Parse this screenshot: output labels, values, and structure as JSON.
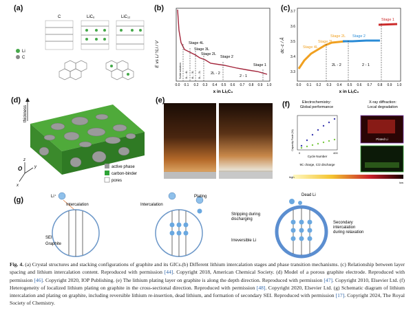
{
  "panels": {
    "a": {
      "label": "(a)",
      "structures": [
        "C",
        "LiC₆",
        "LiC₁₂"
      ],
      "legend": [
        "Li",
        "C"
      ]
    },
    "b": {
      "label": "(b)",
      "ylabel": "E vs Li⁺/Li / V",
      "xlabel": "x in LiₓC₆",
      "stages": [
        "Stage 4L",
        "Stage 3L",
        "Stage 2L",
        "Stage 2",
        "Stage 1"
      ],
      "phases": [
        "Solid solution",
        "1L - 4L",
        "4L - 3L",
        "3L - 2L",
        "2L - 2",
        "2 - 1"
      ],
      "xticks": [
        "0.0",
        "0.1",
        "0.2",
        "0.3",
        "0.4",
        "0.5",
        "0.6",
        "0.7",
        "0.8",
        "0.9",
        "1.0"
      ]
    },
    "c": {
      "label": "(c)",
      "ylabel": "dᴄ₋ᴄ / Å",
      "xlabel": "x in LiₓC₆",
      "stages": [
        "Stage 1",
        "Stage 2",
        "Stage 2L",
        "Stage 3L",
        "Stage 4L"
      ],
      "phases": [
        "2L - 2",
        "2 - 1"
      ],
      "yticks": [
        "3.3",
        "3.4",
        "3.5",
        "3.6",
        "3.7"
      ],
      "xticks": [
        "0.0",
        "0.1",
        "0.2",
        "0.3",
        "0.4",
        "0.5",
        "0.6",
        "0.7",
        "0.8",
        "0.9",
        "1.0"
      ]
    },
    "d": {
      "label": "(d)",
      "axis_thickness": "thickness",
      "axes": [
        "O",
        "x",
        "y",
        "z"
      ],
      "legend": [
        "active phase",
        "carbon-binder",
        "pores"
      ]
    },
    "e": {
      "label": "(e)"
    },
    "f": {
      "label": "(f)",
      "left_title": "Electrochemistry:\nGlobal performance",
      "right_title": "X-ray diffraction:\nLocal degradation",
      "ylabel": "Capacity Fade (%)",
      "xlabel": "Cycle Number",
      "xticks": [
        "0",
        "400"
      ],
      "note": "9C charge, C/2 discharge",
      "plated": "Plated Li",
      "colorbar": [
        "high",
        "low"
      ]
    },
    "g": {
      "label": "(g)",
      "li": "Li⁺",
      "intercalation": "Intercalation",
      "sei": "SEI",
      "graphite": "Graphite",
      "intercalation2": "Intercalation",
      "plating": "Plating",
      "dead_li": "Dead Li",
      "stripping": "Stripping during\ndischarging",
      "irreversible": "Irreversible Li",
      "secondary": "Secondary\nintercalation\nduring relaxation"
    }
  },
  "caption": {
    "fig": "Fig. 4.",
    "text_1": " (a) Crystal structures and stacking configurations of graphite and its GICs.(b) Different lithium intercalation stages and phase transition mechanisms. (c) Relationship between layer spacing and lithium intercalation content. Reproduced with permission ",
    "ref_1": "[44]",
    "text_2": ". Copyright 2018, American Chemical Society. (d) Model of a porous graphite electrode. Reproduced with permission ",
    "ref_2": "[46]",
    "text_3": ". Copyright 2020, IOP Publishing. (e) The lithium plating layer on graphite is along the depth direction. Reproduced with permission ",
    "ref_3": "[47]",
    "text_4": ". Copyright 2010, Elsevier Ltd. (f) Heterogeneity of localized lithium plating on graphite in the cross-sectional direction. Reproduced with permission ",
    "ref_4": "[48]",
    "text_5": ". Copyright 2020, Elsevier Ltd. (g) Schematic diagram of lithium intercalation and plating on graphite, including reversible lithium re-insertion, dead lithium, and formation of secondary SEI. Reproduced with permission ",
    "ref_5": "[17]",
    "text_6": ". Copyright 2024, The Royal Society of Chemistry."
  }
}
